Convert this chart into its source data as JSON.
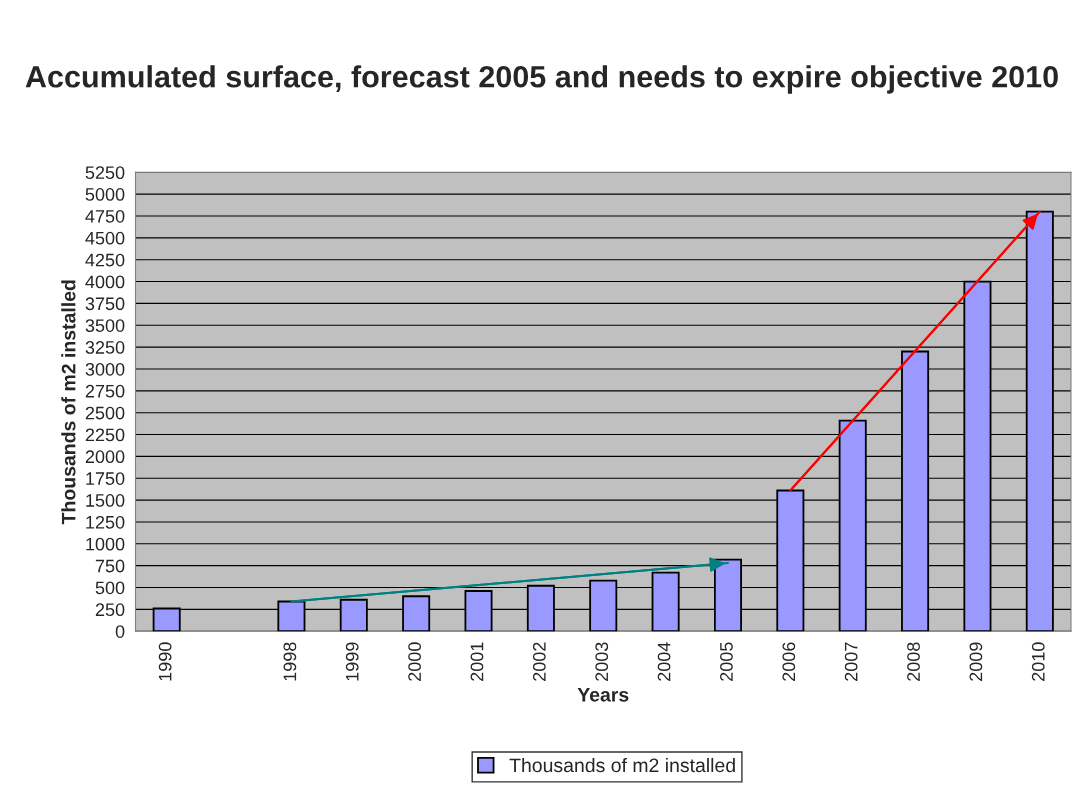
{
  "chart_data": {
    "type": "bar",
    "title": "Accumulated surface, forecast 2005 and needs to expire objective 2010",
    "xlabel": "Years",
    "ylabel": "Thousands of m2 installed",
    "categories": [
      "1990",
      null,
      "1998",
      "1999",
      "2000",
      "2001",
      "2002",
      "2003",
      "2004",
      "2005",
      "2006",
      "2007",
      "2008",
      "2009",
      "2010"
    ],
    "series": [
      {
        "name": "Thousands of m2 installed",
        "color": "#9999ff",
        "values": [
          260,
          null,
          340,
          360,
          400,
          460,
          520,
          580,
          670,
          820,
          1610,
          2410,
          3200,
          4000,
          4800
        ]
      },
      {
        "type": "line",
        "color": "#008080",
        "values": [
          null,
          null,
          340,
          null,
          null,
          null,
          null,
          null,
          null,
          780,
          null,
          null,
          null,
          null,
          null
        ]
      },
      {
        "type": "line",
        "color": "#ff0000",
        "values": [
          null,
          null,
          null,
          null,
          null,
          null,
          null,
          null,
          null,
          null,
          1610,
          null,
          null,
          null,
          4800
        ]
      }
    ],
    "ylim": [
      0,
      5250
    ],
    "yticks": [
      0,
      250,
      500,
      750,
      1000,
      1250,
      1500,
      1750,
      2000,
      2250,
      2500,
      2750,
      3000,
      3250,
      3500,
      3750,
      4000,
      4250,
      4500,
      4750,
      5000,
      5250
    ],
    "grid": "y",
    "legend": "bottom"
  }
}
